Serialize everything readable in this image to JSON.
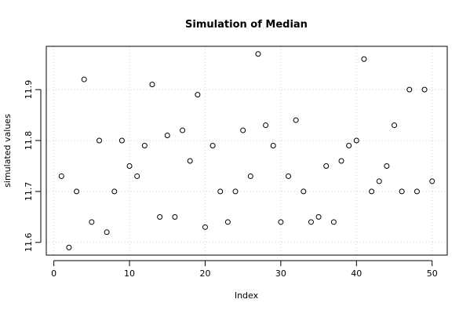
{
  "chart_data": {
    "type": "scatter",
    "title": "Simulation of Median",
    "xlabel": "Index",
    "ylabel": "simulated values",
    "xlim": [
      -1,
      52
    ],
    "ylim": [
      11.575,
      11.985
    ],
    "xticks": [
      "0",
      "10",
      "20",
      "30",
      "40",
      "50"
    ],
    "yticks": [
      "11.6",
      "11.7",
      "11.8",
      "11.9"
    ],
    "grid": true,
    "series": [
      {
        "x": [
          1,
          2,
          3,
          4,
          5,
          6,
          7,
          8,
          9,
          10,
          11,
          12,
          13,
          14,
          15,
          16,
          17,
          18,
          19,
          20,
          21,
          22,
          23,
          24,
          25,
          26,
          27,
          28,
          29,
          30,
          31,
          32,
          33,
          34,
          35,
          36,
          37,
          38,
          39,
          40,
          41,
          42,
          43,
          44,
          45,
          46,
          47,
          48,
          49,
          50
        ],
        "y": [
          11.73,
          11.59,
          11.7,
          11.92,
          11.64,
          11.8,
          11.62,
          11.7,
          11.8,
          11.75,
          11.73,
          11.79,
          11.91,
          11.65,
          11.81,
          11.65,
          11.82,
          11.76,
          11.89,
          11.63,
          11.79,
          11.7,
          11.64,
          11.7,
          11.82,
          11.73,
          11.97,
          11.83,
          11.79,
          11.64,
          11.73,
          11.84,
          11.7,
          11.64,
          11.65,
          11.75,
          11.64,
          11.76,
          11.79,
          11.8,
          11.96,
          11.7,
          11.72,
          11.75,
          11.83,
          11.7,
          11.9,
          11.7,
          11.9,
          11.72
        ]
      }
    ]
  }
}
